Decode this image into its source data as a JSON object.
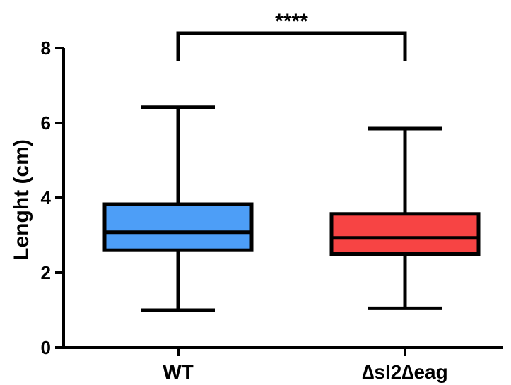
{
  "chart_data": {
    "type": "box",
    "ylabel": "Lenght (cm)",
    "ylim": [
      0,
      8
    ],
    "yticks": [
      0,
      2,
      4,
      6,
      8
    ],
    "categories": [
      "WT",
      "∆sl2∆eag"
    ],
    "series": [
      {
        "category": "WT",
        "min": 1.0,
        "q1": 2.6,
        "median": 3.08,
        "q3": 3.83,
        "max": 6.42,
        "color": "#4d9ef7"
      },
      {
        "category": "∆sl2∆eag",
        "min": 1.05,
        "q1": 2.5,
        "median": 2.93,
        "q3": 3.57,
        "max": 5.85,
        "color": "#f74444"
      }
    ],
    "significance": {
      "label": "****",
      "between": [
        "WT",
        "∆sl2∆eag"
      ]
    },
    "grid": false
  }
}
